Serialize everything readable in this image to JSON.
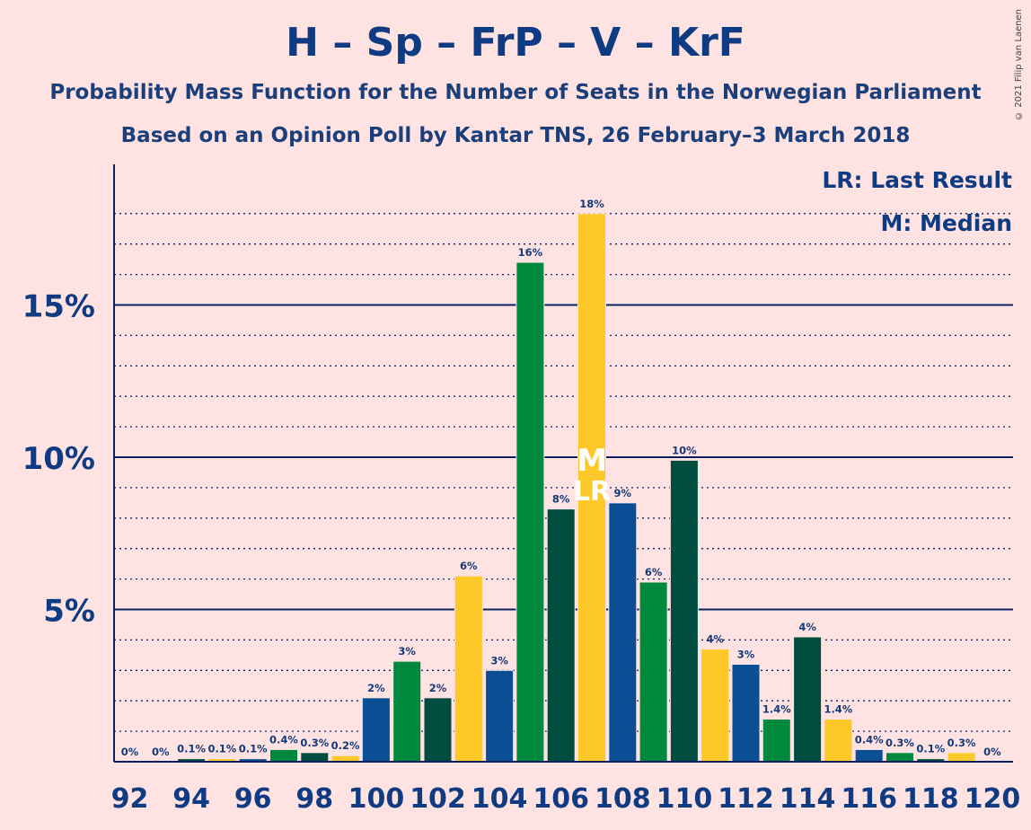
{
  "title": "H – Sp – FrP – V – KrF",
  "subtitle": "Probability Mass Function for the Number of Seats in the Norwegian Parliament",
  "subtitle2": "Based on an Opinion Poll by Kantar TNS, 26 February–3 March 2018",
  "copyright": "© 2021 Filip van Laenen",
  "legend": {
    "last_result": "LR: Last Result",
    "median": "M: Median"
  },
  "colors": {
    "background": "#ffe2e2",
    "axis": "#0a2060",
    "party_colors": [
      "#0a4f93",
      "#00893c",
      "#004d40",
      "#ffc829"
    ]
  },
  "chart_data": {
    "type": "bar",
    "x": [
      92,
      93,
      94,
      95,
      96,
      97,
      98,
      99,
      100,
      101,
      102,
      103,
      104,
      105,
      106,
      107,
      108,
      109,
      110,
      111,
      112,
      113,
      114,
      115,
      116,
      117,
      118,
      119,
      120
    ],
    "values": [
      0,
      0,
      0.1,
      0.1,
      0.1,
      0.4,
      0.3,
      0.2,
      2.1,
      3.3,
      2.1,
      6.1,
      3.0,
      16.4,
      8.3,
      18.0,
      8.5,
      5.9,
      9.9,
      3.7,
      3.2,
      1.4,
      4.1,
      1.4,
      0.4,
      0.3,
      0.1,
      0.3,
      0
    ],
    "value_labels": [
      "0%",
      "0%",
      "0.1%",
      "0.1%",
      "0.1%",
      "0.4%",
      "0.3%",
      "0.2%",
      "2%",
      "3%",
      "2%",
      "6%",
      "3%",
      "16%",
      "8%",
      "18%",
      "9%",
      "6%",
      "10%",
      "4%",
      "3%",
      "1.4%",
      "4%",
      "1.4%",
      "0.4%",
      "0.3%",
      "0.1%",
      "0.3%",
      "0%"
    ],
    "x_tick_labels": [
      "92",
      "94",
      "96",
      "98",
      "100",
      "102",
      "104",
      "106",
      "108",
      "110",
      "112",
      "114",
      "116",
      "118",
      "120"
    ],
    "y_tick_labels": [
      "5%",
      "10%",
      "15%"
    ],
    "ylim": [
      0,
      19.5
    ],
    "median_seat": 107,
    "median_marker": "M",
    "last_result_seat": 107,
    "last_result_marker": "LR",
    "grid": "dotted every 1%, solid every 5%",
    "legend_position": "top-right"
  }
}
